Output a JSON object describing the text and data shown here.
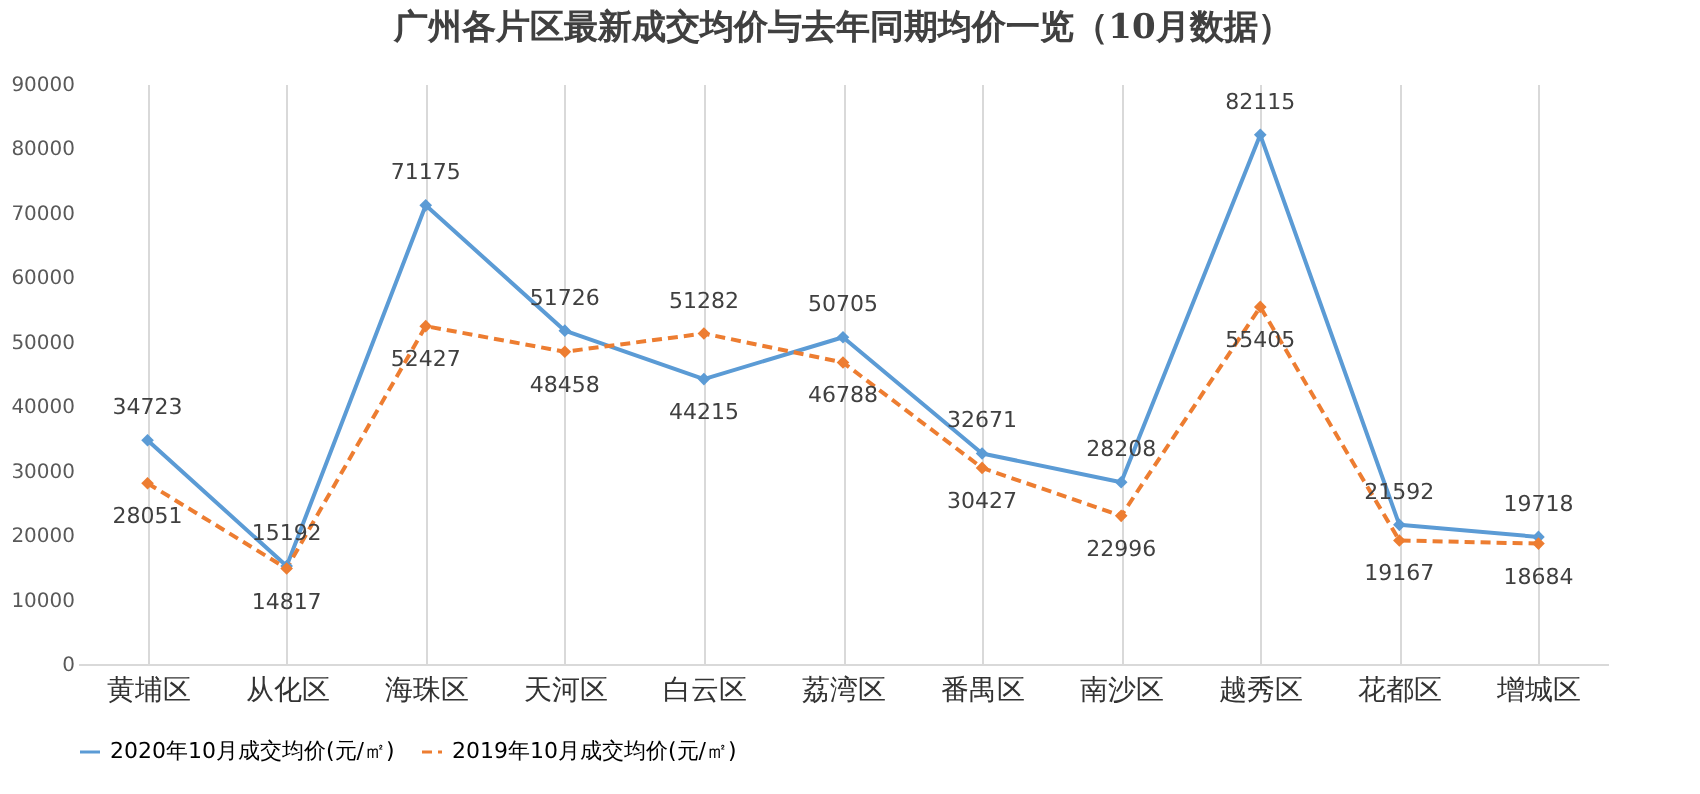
{
  "chart_data": {
    "type": "line",
    "title": "广州各片区最新成交均价与去年同期均价一览（10月数据）",
    "categories": [
      "黄埔区",
      "从化区",
      "海珠区",
      "天河区",
      "白云区",
      "荔湾区",
      "番禺区",
      "南沙区",
      "越秀区",
      "花都区",
      "增城区"
    ],
    "series": [
      {
        "name": "2020年10月成交均价(元/㎡)",
        "color": "#5b9bd5",
        "line_style": "solid",
        "values": [
          34723,
          15192,
          71175,
          51726,
          44215,
          50705,
          32671,
          28208,
          82115,
          21592,
          19718
        ]
      },
      {
        "name": "2019年10月成交均价(元/㎡)",
        "color": "#ed7d31",
        "line_style": "dashed",
        "values": [
          28051,
          14817,
          52427,
          48458,
          51282,
          46788,
          30427,
          22996,
          55405,
          19167,
          18684
        ]
      }
    ],
    "ylim": [
      0,
      90000
    ],
    "yticks": [
      0,
      10000,
      20000,
      30000,
      40000,
      50000,
      60000,
      70000,
      80000,
      90000
    ],
    "grid": "x",
    "legend": "bottom",
    "marker": "diamond",
    "data_labels": true
  }
}
